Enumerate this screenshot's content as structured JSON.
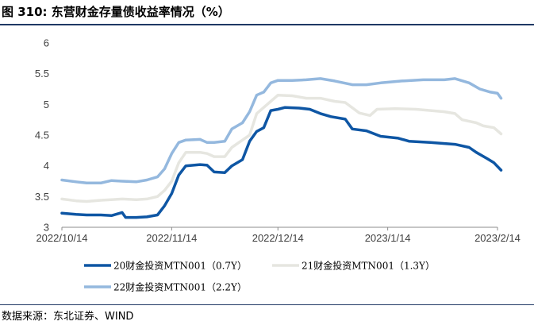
{
  "header": {
    "title": "图 310:  东营财金存量债收益率情况（%）"
  },
  "footer": {
    "source": "数据来源：东北证券、WIND"
  },
  "chart_data": {
    "type": "line",
    "title": "图 310:  东营财金存量债收益率情况（%）",
    "xlabel": "",
    "ylabel": "",
    "ylim": [
      3,
      6
    ],
    "yticks": [
      3,
      3.5,
      4,
      4.5,
      5,
      5.5,
      6
    ],
    "ytick_labels": [
      "3",
      "3.5",
      "4",
      "4.5",
      "5",
      "5.5",
      "6"
    ],
    "xlim": [
      "2022-10-14",
      "2023-02-14"
    ],
    "xticks": [
      "2022-10-14",
      "2022-11-14",
      "2022-12-14",
      "2023-01-14",
      "2023-02-14"
    ],
    "xtick_labels": [
      "2022/10/14",
      "2022/11/14",
      "2022/12/14",
      "2023/1/14",
      "2023/2/14"
    ],
    "grid": false,
    "legend_position": "bottom",
    "series": [
      {
        "name": "20财金投资MTN001（0.7Y）",
        "color": "#0e56a4",
        "points": [
          [
            "2022-10-14",
            3.23
          ],
          [
            "2022-10-18",
            3.21
          ],
          [
            "2022-10-21",
            3.2
          ],
          [
            "2022-10-25",
            3.2
          ],
          [
            "2022-10-28",
            3.19
          ],
          [
            "2022-10-31",
            3.24
          ],
          [
            "2022-11-01",
            3.16
          ],
          [
            "2022-11-04",
            3.16
          ],
          [
            "2022-11-07",
            3.17
          ],
          [
            "2022-11-10",
            3.2
          ],
          [
            "2022-11-12",
            3.35
          ],
          [
            "2022-11-14",
            3.55
          ],
          [
            "2022-11-16",
            3.85
          ],
          [
            "2022-11-18",
            4.0
          ],
          [
            "2022-11-22",
            4.02
          ],
          [
            "2022-11-24",
            4.01
          ],
          [
            "2022-11-26",
            3.9
          ],
          [
            "2022-11-29",
            3.89
          ],
          [
            "2022-12-01",
            4.0
          ],
          [
            "2022-12-04",
            4.1
          ],
          [
            "2022-12-06",
            4.4
          ],
          [
            "2022-12-08",
            4.56
          ],
          [
            "2022-12-10",
            4.62
          ],
          [
            "2022-12-12",
            4.9
          ],
          [
            "2022-12-14",
            4.92
          ],
          [
            "2022-12-16",
            4.95
          ],
          [
            "2022-12-20",
            4.94
          ],
          [
            "2022-12-23",
            4.92
          ],
          [
            "2022-12-26",
            4.85
          ],
          [
            "2022-12-29",
            4.8
          ],
          [
            "2023-01-02",
            4.76
          ],
          [
            "2023-01-04",
            4.6
          ],
          [
            "2023-01-08",
            4.57
          ],
          [
            "2023-01-12",
            4.48
          ],
          [
            "2023-01-17",
            4.45
          ],
          [
            "2023-01-20",
            4.4
          ],
          [
            "2023-01-26",
            4.38
          ],
          [
            "2023-02-02",
            4.35
          ],
          [
            "2023-02-06",
            4.3
          ],
          [
            "2023-02-08",
            4.22
          ],
          [
            "2023-02-11",
            4.12
          ],
          [
            "2023-02-13",
            4.05
          ],
          [
            "2023-02-15",
            3.93
          ]
        ]
      },
      {
        "name": "21财金投资MTN001（1.3Y）",
        "color": "#e6e6e0",
        "points": [
          [
            "2022-10-14",
            3.46
          ],
          [
            "2022-10-18",
            3.43
          ],
          [
            "2022-10-21",
            3.42
          ],
          [
            "2022-10-25",
            3.44
          ],
          [
            "2022-10-28",
            3.45
          ],
          [
            "2022-10-31",
            3.46
          ],
          [
            "2022-11-04",
            3.45
          ],
          [
            "2022-11-07",
            3.46
          ],
          [
            "2022-11-10",
            3.5
          ],
          [
            "2022-11-12",
            3.6
          ],
          [
            "2022-11-14",
            3.75
          ],
          [
            "2022-11-16",
            4.05
          ],
          [
            "2022-11-18",
            4.22
          ],
          [
            "2022-11-22",
            4.22
          ],
          [
            "2022-11-24",
            4.2
          ],
          [
            "2022-11-26",
            4.15
          ],
          [
            "2022-11-29",
            4.15
          ],
          [
            "2022-12-01",
            4.3
          ],
          [
            "2022-12-04",
            4.42
          ],
          [
            "2022-12-06",
            4.5
          ],
          [
            "2022-12-08",
            4.85
          ],
          [
            "2022-12-10",
            4.95
          ],
          [
            "2022-12-12",
            5.05
          ],
          [
            "2022-12-14",
            5.15
          ],
          [
            "2022-12-18",
            5.14
          ],
          [
            "2022-12-22",
            5.1
          ],
          [
            "2022-12-26",
            5.1
          ],
          [
            "2022-12-30",
            5.05
          ],
          [
            "2023-01-02",
            5.03
          ],
          [
            "2023-01-06",
            4.86
          ],
          [
            "2023-01-09",
            4.82
          ],
          [
            "2023-01-11",
            4.92
          ],
          [
            "2023-01-16",
            4.93
          ],
          [
            "2023-01-22",
            4.92
          ],
          [
            "2023-01-30",
            4.88
          ],
          [
            "2023-02-02",
            4.85
          ],
          [
            "2023-02-04",
            4.75
          ],
          [
            "2023-02-08",
            4.7
          ],
          [
            "2023-02-10",
            4.65
          ],
          [
            "2023-02-13",
            4.62
          ],
          [
            "2023-02-15",
            4.52
          ]
        ]
      },
      {
        "name": "22财金投资MTN001（2.2Y）",
        "color": "#94b8de",
        "points": [
          [
            "2022-10-14",
            3.77
          ],
          [
            "2022-10-18",
            3.74
          ],
          [
            "2022-10-21",
            3.72
          ],
          [
            "2022-10-25",
            3.72
          ],
          [
            "2022-10-28",
            3.76
          ],
          [
            "2022-10-31",
            3.75
          ],
          [
            "2022-11-04",
            3.74
          ],
          [
            "2022-11-07",
            3.77
          ],
          [
            "2022-11-10",
            3.82
          ],
          [
            "2022-11-12",
            3.95
          ],
          [
            "2022-11-14",
            4.2
          ],
          [
            "2022-11-16",
            4.38
          ],
          [
            "2022-11-18",
            4.42
          ],
          [
            "2022-11-22",
            4.43
          ],
          [
            "2022-11-24",
            4.38
          ],
          [
            "2022-11-26",
            4.38
          ],
          [
            "2022-11-29",
            4.4
          ],
          [
            "2022-12-01",
            4.6
          ],
          [
            "2022-12-04",
            4.7
          ],
          [
            "2022-12-06",
            4.88
          ],
          [
            "2022-12-08",
            5.15
          ],
          [
            "2022-12-10",
            5.2
          ],
          [
            "2022-12-12",
            5.35
          ],
          [
            "2022-12-14",
            5.39
          ],
          [
            "2022-12-18",
            5.39
          ],
          [
            "2022-12-22",
            5.4
          ],
          [
            "2022-12-26",
            5.42
          ],
          [
            "2022-12-30",
            5.38
          ],
          [
            "2023-01-04",
            5.32
          ],
          [
            "2023-01-08",
            5.32
          ],
          [
            "2023-01-12",
            5.35
          ],
          [
            "2023-01-18",
            5.38
          ],
          [
            "2023-01-24",
            5.4
          ],
          [
            "2023-01-30",
            5.4
          ],
          [
            "2023-02-02",
            5.42
          ],
          [
            "2023-02-06",
            5.35
          ],
          [
            "2023-02-09",
            5.25
          ],
          [
            "2023-02-12",
            5.2
          ],
          [
            "2023-02-14",
            5.18
          ],
          [
            "2023-02-15",
            5.1
          ]
        ]
      }
    ]
  }
}
